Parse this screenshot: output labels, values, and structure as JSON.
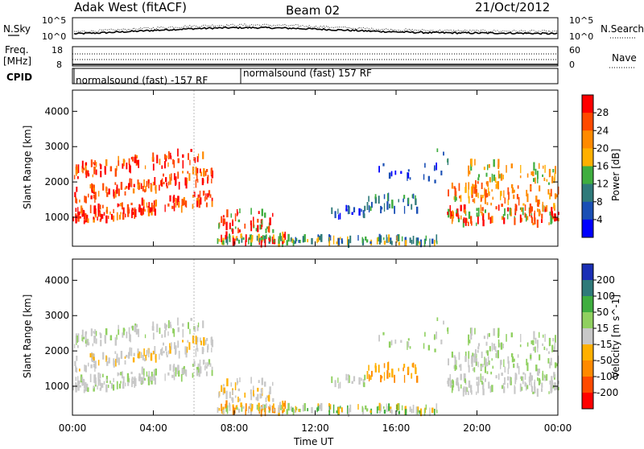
{
  "header": {
    "station": "Adak West (fitACF)",
    "beam": "Beam 02",
    "date": "21/Oct/2012"
  },
  "top_panels": {
    "nsky_label": "N.Sky",
    "nsky_ticks": [
      "10^5",
      "10^0"
    ],
    "nsearch_label": "N.Search",
    "nsearch_ticks": [
      "10^5",
      "10^0"
    ],
    "freq_label": "Freq.",
    "freq_unit": "[MHz]",
    "freq_ticks": [
      "18",
      "8"
    ],
    "nave_label": "Nave",
    "nave_ticks": [
      "60",
      "0"
    ],
    "cpid_label": "CPID",
    "cpid_entries": [
      "normalsound (fast) -157 RF",
      "normalsound (fast) 157 RF"
    ]
  },
  "chart_data": [
    {
      "type": "heatmap",
      "title": "",
      "xlabel": "",
      "ylabel": "Slant Range [km]",
      "x_ticks": [
        "00:00",
        "04:00",
        "08:00",
        "12:00",
        "16:00",
        "20:00",
        "00:00"
      ],
      "y_ticks": [
        "1000",
        "2000",
        "3000",
        "4000"
      ],
      "ylim": [
        180,
        4600
      ],
      "colorbar": {
        "label": "Power [dB]",
        "ticks": [
          "28",
          "24",
          "20",
          "16",
          "12",
          "8",
          "4"
        ],
        "colors": [
          "#ff0000",
          "#ff4a00",
          "#ff8a00",
          "#ffb000",
          "#3fae3f",
          "#2f7a7a",
          "#1a4fb5",
          "#0000ff"
        ]
      }
    },
    {
      "type": "heatmap",
      "title": "",
      "xlabel": "Time UT",
      "ylabel": "Slant Range [km]",
      "x_ticks": [
        "00:00",
        "04:00",
        "08:00",
        "12:00",
        "16:00",
        "20:00",
        "00:00"
      ],
      "y_ticks": [
        "1000",
        "2000",
        "3000",
        "4000"
      ],
      "ylim": [
        180,
        4600
      ],
      "colorbar": {
        "label": "Velocity [m s^-1]",
        "ticks": [
          "200",
          "100",
          "50",
          "15",
          "-15",
          "-50",
          "-100",
          "-200"
        ],
        "colors": [
          "#1a2fb5",
          "#2f7a7a",
          "#3fae3f",
          "#90d060",
          "#c8c8c8",
          "#ffb000",
          "#ff8a00",
          "#ff4a00",
          "#ff0000"
        ]
      }
    }
  ]
}
